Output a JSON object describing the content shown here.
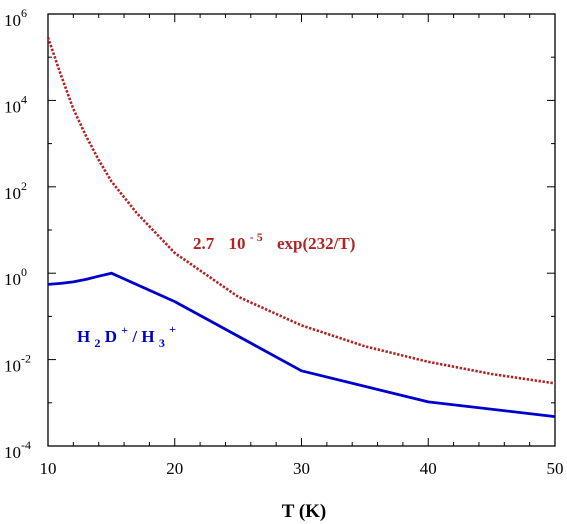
{
  "chart_data": {
    "type": "line",
    "title": "",
    "xlabel": "T (K)",
    "ylabel": "",
    "xlim": [
      10,
      50
    ],
    "ylim": [
      0.0001,
      1000000
    ],
    "yscale": "log",
    "grid": false,
    "x_ticks": [
      "10",
      "20",
      "30",
      "40",
      "50"
    ],
    "y_ticks": [
      {
        "base": "10",
        "exp": "6"
      },
      {
        "base": "10",
        "exp": "4"
      },
      {
        "base": "10",
        "exp": "2"
      },
      {
        "base": "10",
        "exp": "0"
      },
      {
        "base": "10",
        "exp": "-2"
      },
      {
        "base": "10",
        "exp": "-4"
      }
    ],
    "series": [
      {
        "key": "exp",
        "color": "#b22222",
        "style": "dotted",
        "x": [
          10,
          11,
          12,
          13,
          14,
          15,
          17,
          20,
          25,
          30,
          35,
          40,
          45,
          50
        ],
        "y": [
          288000,
          40000,
          6400,
          1510,
          419,
          133,
          24.8,
          2.94,
          0.286,
          0.0619,
          0.0203,
          0.00891,
          0.00465,
          0.00281
        ]
      },
      {
        "key": "ratio",
        "color": "#0000cc",
        "style": "solid",
        "x": [
          10,
          11,
          12,
          13,
          14,
          15,
          20,
          30,
          40,
          50
        ],
        "y": [
          0.55,
          0.58,
          0.63,
          0.72,
          0.85,
          1.0,
          0.22,
          0.0055,
          0.00105,
          0.00048
        ]
      }
    ],
    "annotations": {
      "red": {
        "prefix": "2.7",
        "mid": "10",
        "exp": "- 5",
        "suffix": "exp(232/T)"
      },
      "blue": {
        "a": "H",
        "a_sub": "2",
        "b": "D",
        "b_sup": "+",
        "c": "/ H",
        "c_sub": "3",
        "c_sup": "+"
      }
    }
  }
}
